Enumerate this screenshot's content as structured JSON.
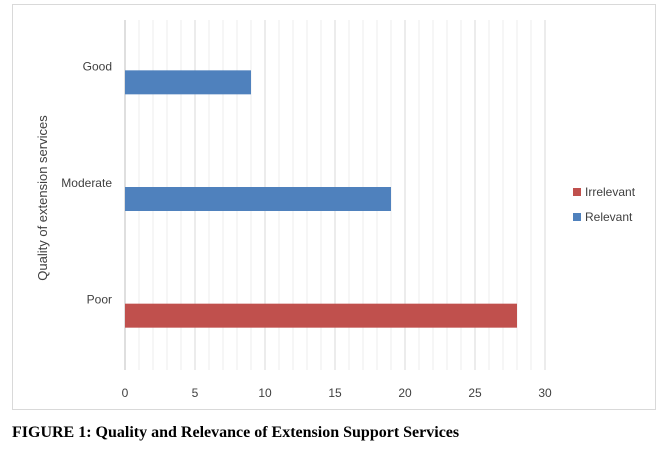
{
  "caption": "FIGURE 1: Quality and Relevance of Extension Support Services",
  "chart_data": {
    "type": "bar",
    "orientation": "horizontal",
    "title": "",
    "xlabel": "",
    "ylabel": "Quality of extension services",
    "categories": [
      "Good",
      "Moderate",
      "Poor"
    ],
    "series": [
      {
        "name": "Irrelevant",
        "color": "#c0504d",
        "values": [
          null,
          null,
          28
        ]
      },
      {
        "name": "Relevant",
        "color": "#4f81bd",
        "values": [
          9,
          19,
          null
        ]
      }
    ],
    "xlim": [
      0,
      30
    ],
    "xticks": [
      "0",
      "5",
      "10",
      "15",
      "20",
      "25",
      "30"
    ],
    "grid": "vertical",
    "legend": "right"
  }
}
